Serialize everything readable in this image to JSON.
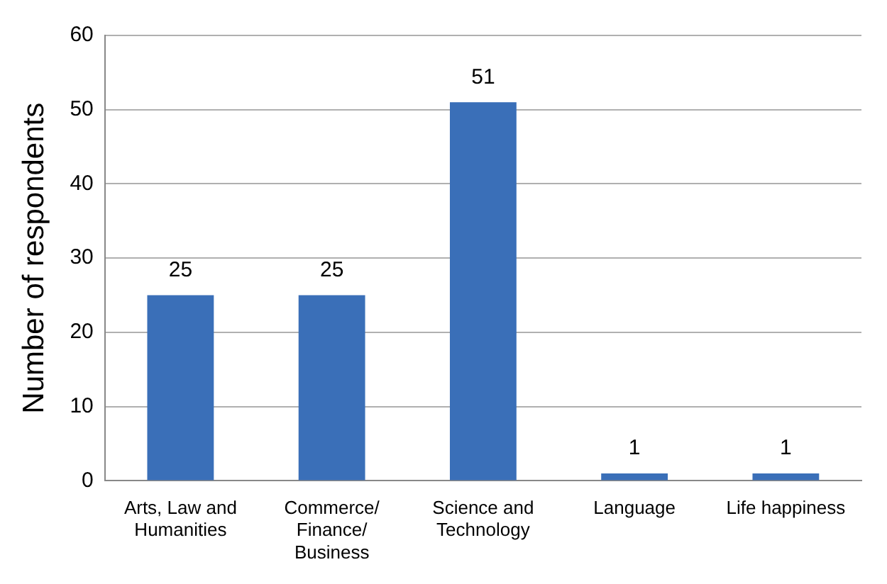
{
  "chart_data": {
    "type": "bar",
    "ylabel": "Number of respondents",
    "categories": [
      "Arts, Law and Humanities",
      "Commerce/Finance/Business",
      "Science and Technology",
      "Language",
      "Life happiness"
    ],
    "values": [
      25,
      25,
      51,
      1,
      1
    ],
    "color": "#3a6fb8",
    "ylim": [
      0,
      60
    ],
    "yticks": [
      0,
      10,
      20,
      30,
      40,
      50,
      60
    ],
    "grid": "y",
    "data_labels": true
  }
}
